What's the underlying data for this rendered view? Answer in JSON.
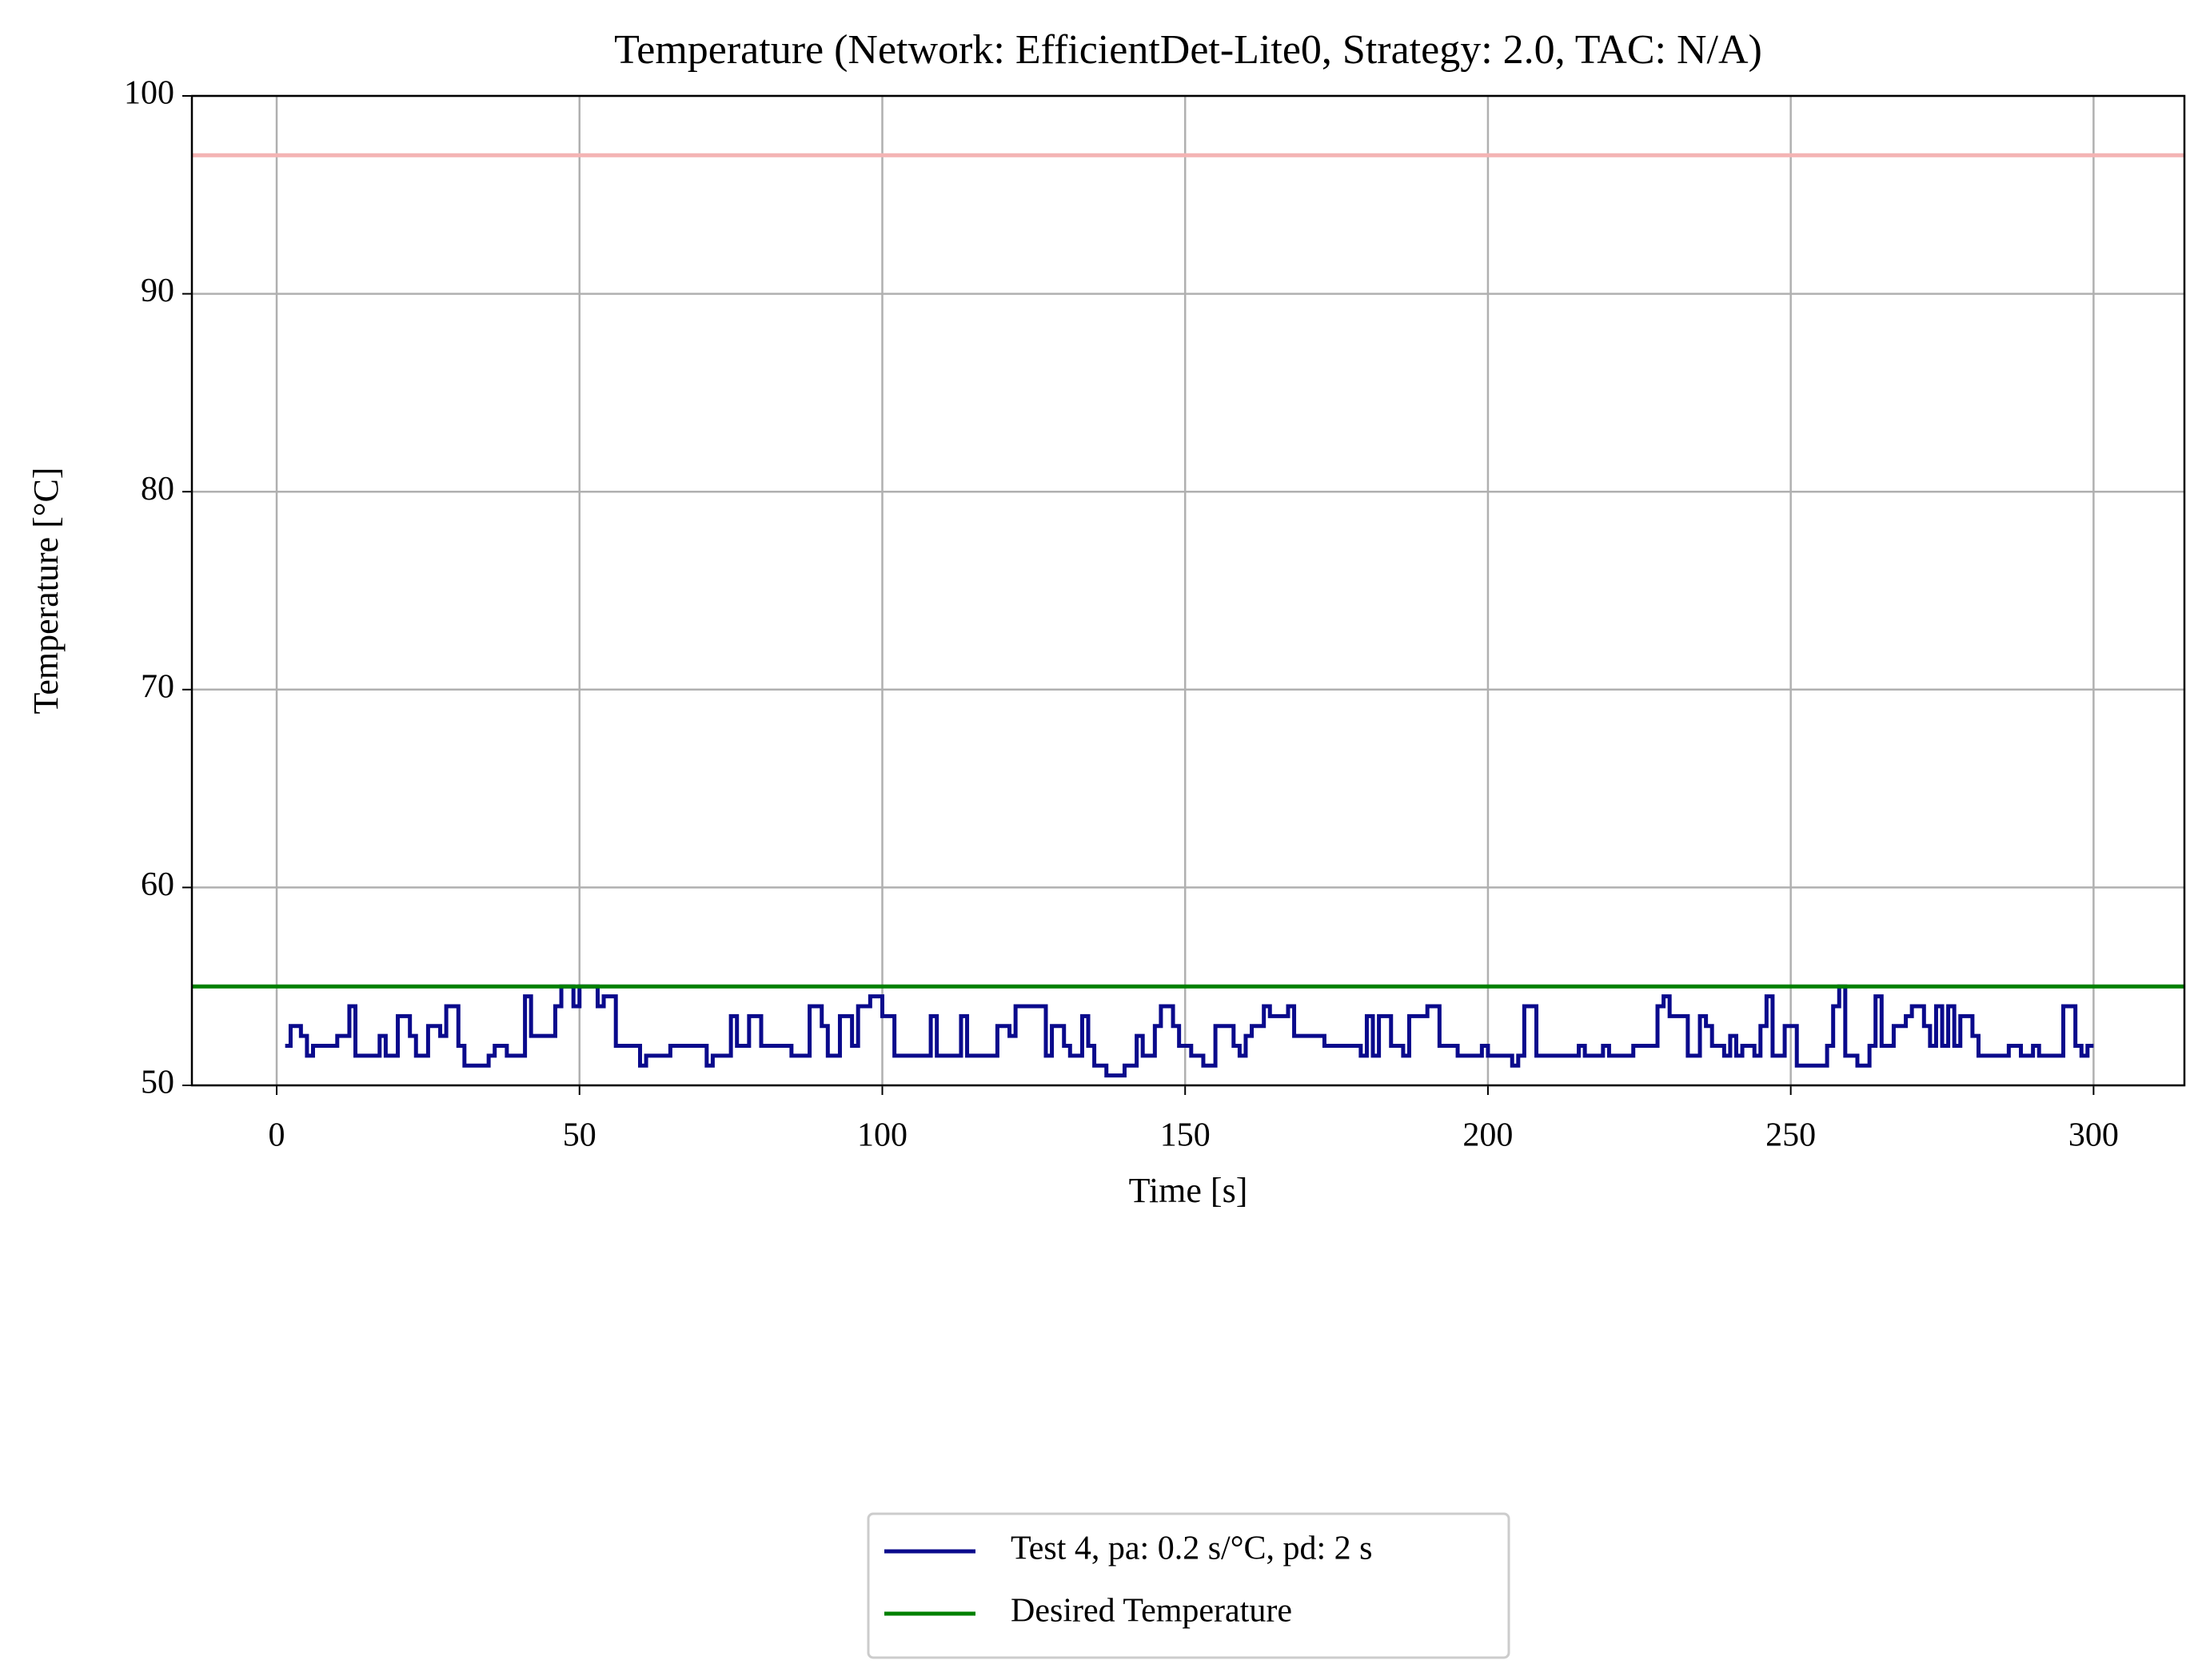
{
  "chart_data": {
    "type": "line",
    "title": "Temperature (Network: EfficientDet-Lite0, Strategy: 2.0, TAC: N/A)",
    "xlabel": "Time [s]",
    "ylabel": "Temperature [°C]",
    "xlim": [
      -14,
      315
    ],
    "ylim": [
      50,
      100
    ],
    "xticks": [
      0,
      50,
      100,
      150,
      200,
      250,
      300
    ],
    "yticks": [
      50,
      60,
      70,
      80,
      90,
      100
    ],
    "grid": true,
    "step": true,
    "legend_loc": "below",
    "series": [
      {
        "name": "Test 4, pa: 0.2 s/°C, pd: 2 s",
        "color": "#0a0a8c",
        "x": [
          1.4,
          2.3,
          4,
          5,
          6,
          10,
          12,
          13,
          17,
          18,
          20,
          22,
          23,
          25,
          27,
          28,
          30,
          31,
          35,
          36,
          38,
          41,
          42,
          46,
          47,
          49,
          50,
          53,
          54,
          56,
          60,
          61,
          65,
          71,
          72,
          75,
          76,
          78,
          80,
          85,
          88,
          90,
          91,
          93,
          95,
          96,
          98,
          100,
          102,
          108,
          109,
          113,
          114,
          119,
          121,
          122,
          127,
          128,
          130,
          131,
          133,
          134,
          135,
          137,
          140,
          142,
          143,
          145,
          146,
          148,
          149,
          151,
          153,
          155,
          158,
          159,
          160,
          161,
          163,
          164,
          167,
          168,
          173,
          179,
          180,
          181,
          182,
          184,
          186,
          187,
          190,
          192,
          195,
          199,
          200,
          204,
          205,
          206,
          208,
          215,
          216,
          219,
          220,
          224,
          228,
          229,
          230,
          233,
          235,
          236,
          237,
          239,
          240,
          241,
          242,
          244,
          245,
          246,
          247,
          249,
          251,
          256,
          257,
          258,
          259,
          261,
          263,
          264,
          265,
          267,
          269,
          270,
          272,
          273,
          274,
          275,
          276,
          277,
          278,
          280,
          281,
          286,
          288,
          290,
          291,
          295,
          297,
          298,
          299,
          300
        ],
        "values": [
          52,
          53,
          52.5,
          51.5,
          52,
          52.5,
          54,
          51.5,
          52.5,
          51.5,
          53.5,
          52.5,
          51.5,
          53,
          52.5,
          54,
          52,
          51,
          51.5,
          52,
          51.5,
          54.5,
          52.5,
          54,
          55,
          54,
          55,
          54,
          54.5,
          52,
          51,
          51.5,
          52,
          51,
          51.5,
          53.5,
          52,
          53.5,
          52,
          51.5,
          54,
          53,
          51.5,
          53.5,
          52,
          54,
          54.5,
          53.5,
          51.5,
          53.5,
          51.5,
          53.5,
          51.5,
          53,
          52.5,
          54,
          51.5,
          53,
          52,
          51.5,
          53.5,
          52,
          51,
          50.5,
          51,
          52.5,
          51.5,
          53,
          54,
          53,
          52,
          51.5,
          51,
          53,
          52,
          51.5,
          52.5,
          53,
          54,
          53.5,
          54,
          52.5,
          52,
          51.5,
          53.5,
          51.5,
          53.5,
          52,
          51.5,
          53.5,
          54,
          52,
          51.5,
          52,
          51.5,
          51,
          51.5,
          54,
          51.5,
          52,
          51.5,
          52,
          51.5,
          52,
          54,
          54.5,
          53.5,
          51.5,
          53.5,
          53,
          52,
          51.5,
          52.5,
          51.5,
          52,
          51.5,
          53,
          54.5,
          51.5,
          53,
          51,
          52,
          54,
          55,
          51.5,
          51,
          52,
          54.5,
          52,
          53,
          53.5,
          54,
          53,
          52,
          54,
          52,
          54,
          52,
          53.5,
          52.5,
          51.5,
          52,
          51.5,
          52,
          51.5,
          54,
          52,
          51.5,
          52,
          52
        ]
      },
      {
        "name": "Desired Temperature",
        "color": "#008000",
        "hline": 55
      }
    ],
    "reference_lines": [
      {
        "value": 97,
        "color": "#f4b4b4"
      }
    ]
  }
}
